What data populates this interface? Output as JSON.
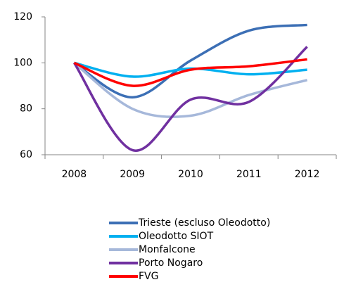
{
  "chart_data": {
    "type": "line",
    "categories": [
      "2008",
      "2009",
      "2010",
      "2011",
      "2012"
    ],
    "series": [
      {
        "name": "Trieste (escluso Oleodotto)",
        "color": "#3c6fb5",
        "values": [
          100,
          85,
          101,
          114,
          116.5
        ]
      },
      {
        "name": "Oleodotto SIOT",
        "color": "#00b0f0",
        "values": [
          100,
          94,
          97.5,
          95,
          97
        ]
      },
      {
        "name": "Monfalcone",
        "color": "#a6b8da",
        "values": [
          100,
          80,
          77,
          86,
          92.5
        ]
      },
      {
        "name": "Porto Nogaro",
        "color": "#7030a0",
        "values": [
          100,
          62,
          84,
          83,
          107
        ]
      },
      {
        "name": "FVG",
        "color": "#ff0000",
        "values": [
          100,
          90,
          97,
          98.5,
          101.5
        ]
      }
    ],
    "ylim": [
      60,
      120
    ],
    "yticks": [
      60,
      80,
      100,
      120
    ],
    "grid": false,
    "legend": "bottom"
  }
}
